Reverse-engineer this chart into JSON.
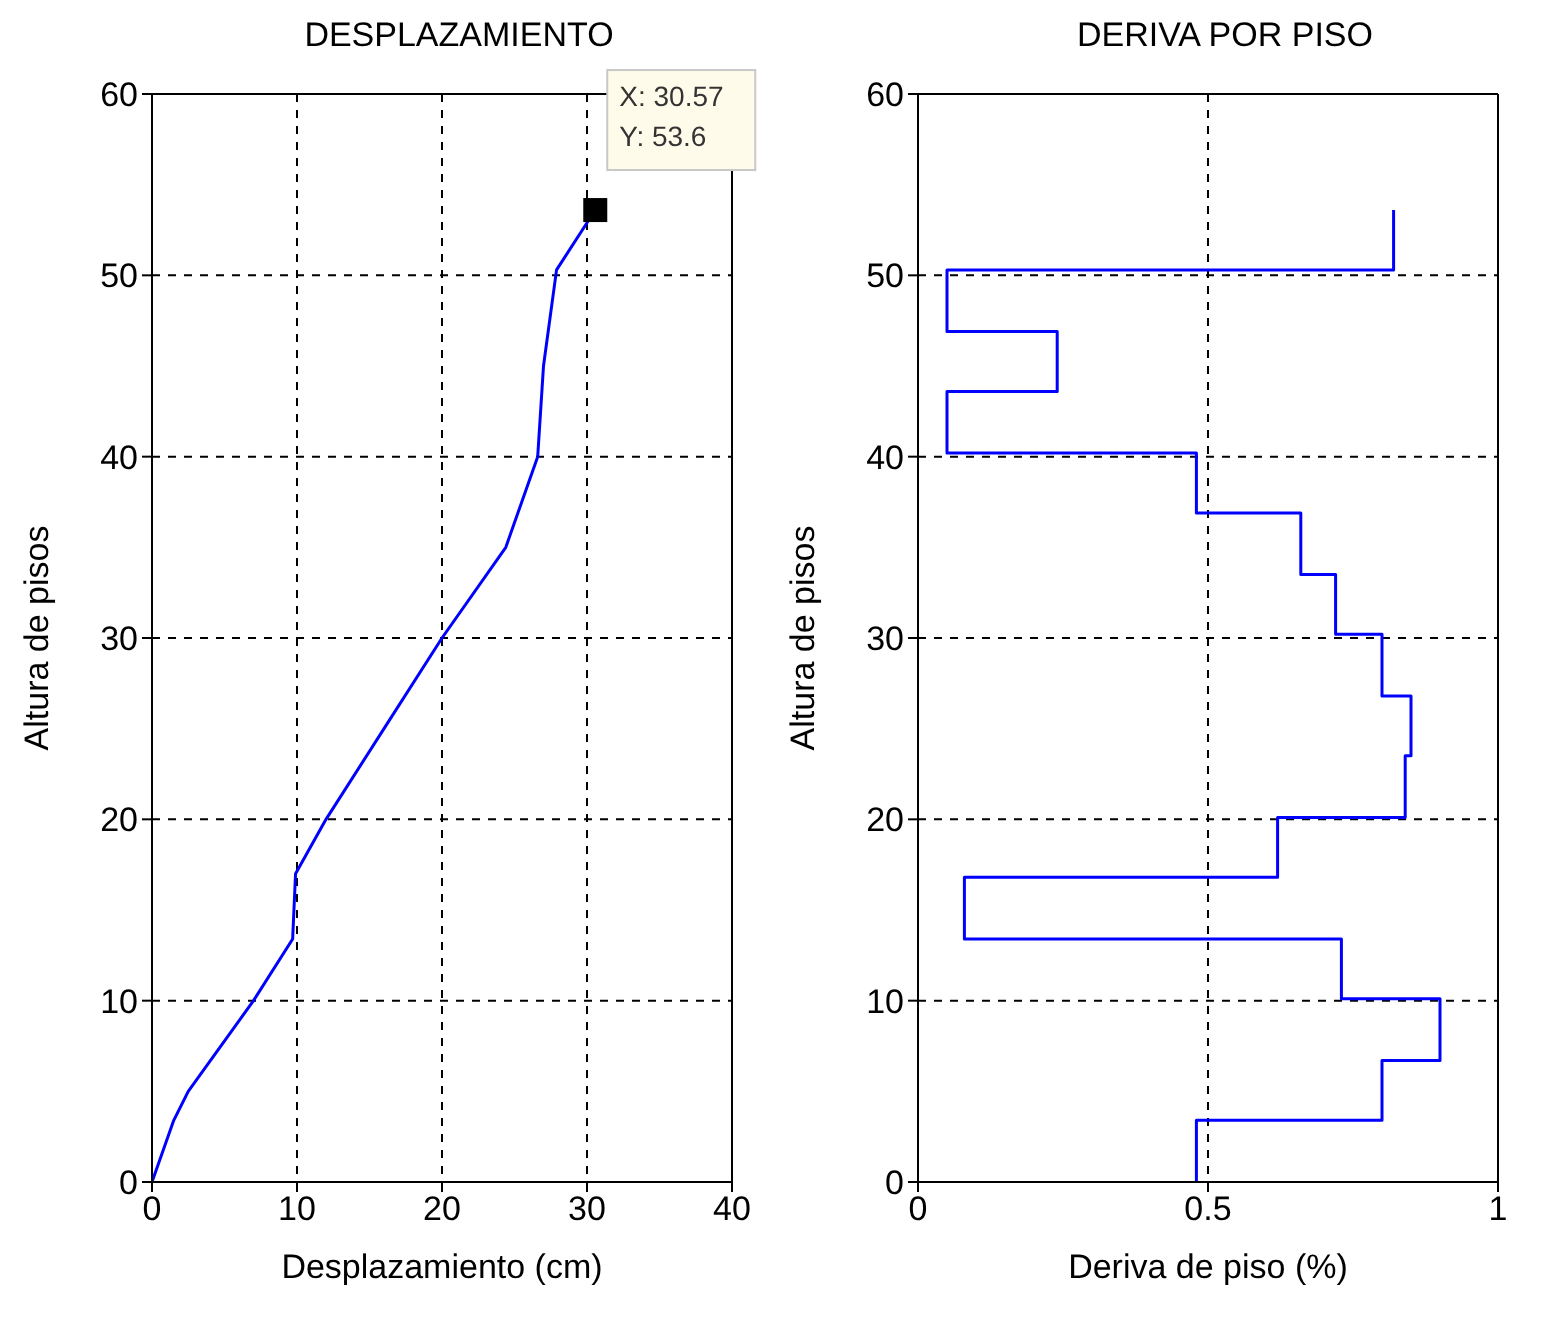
{
  "chart_data": [
    {
      "type": "line",
      "title": "DESPLAZAMIENTO",
      "xlabel": "Desplazamiento (cm)",
      "ylabel": "Altura de pisos",
      "xlim": [
        0,
        40
      ],
      "xticks": [
        0,
        10,
        20,
        30,
        40
      ],
      "ylim": [
        0,
        60
      ],
      "yticks": [
        0,
        10,
        20,
        30,
        40,
        50,
        60
      ],
      "grid": true,
      "series": [
        {
          "color": "#0000ff",
          "x": [
            0,
            1.5,
            2.5,
            7,
            9.7,
            9.9,
            12,
            16,
            20,
            24.4,
            26.6,
            27,
            27.9,
            30.57
          ],
          "values": [
            0,
            3.4,
            5,
            10,
            13.4,
            17,
            20,
            25,
            30,
            35,
            40,
            45,
            50.3,
            53.6
          ]
        }
      ],
      "annotations": [
        {
          "text": "X: 30.57\nY: 53.6",
          "x": 30.57,
          "y": 53.6
        }
      ]
    },
    {
      "type": "line",
      "title": "DERIVA POR PISO",
      "xlabel": "Deriva de piso (%)",
      "ylabel": "Altura de pisos",
      "xlim": [
        0,
        1
      ],
      "xticks": [
        0,
        0.5,
        1
      ],
      "ylim": [
        0,
        60
      ],
      "yticks": [
        0,
        10,
        20,
        30,
        40,
        50,
        60
      ],
      "grid": true,
      "series": [
        {
          "color": "#0000ff",
          "x": [
            0.48,
            0.48,
            0.8,
            0.8,
            0.9,
            0.9,
            0.73,
            0.73,
            0.08,
            0.08,
            0.62,
            0.62,
            0.84,
            0.84,
            0.85,
            0.85,
            0.8,
            0.8,
            0.72,
            0.72,
            0.66,
            0.66,
            0.48,
            0.48,
            0.05,
            0.05,
            0.24,
            0.24,
            0.05,
            0.05,
            0.82,
            0.82
          ],
          "values": [
            0,
            3.4,
            3.4,
            6.7,
            6.7,
            10.1,
            10.1,
            13.4,
            13.4,
            16.8,
            16.8,
            20.1,
            20.1,
            23.5,
            23.5,
            26.8,
            26.8,
            30.2,
            30.2,
            33.5,
            33.5,
            36.9,
            36.9,
            40.2,
            40.2,
            43.6,
            43.6,
            46.9,
            46.9,
            50.3,
            50.3,
            53.6
          ]
        }
      ]
    }
  ]
}
